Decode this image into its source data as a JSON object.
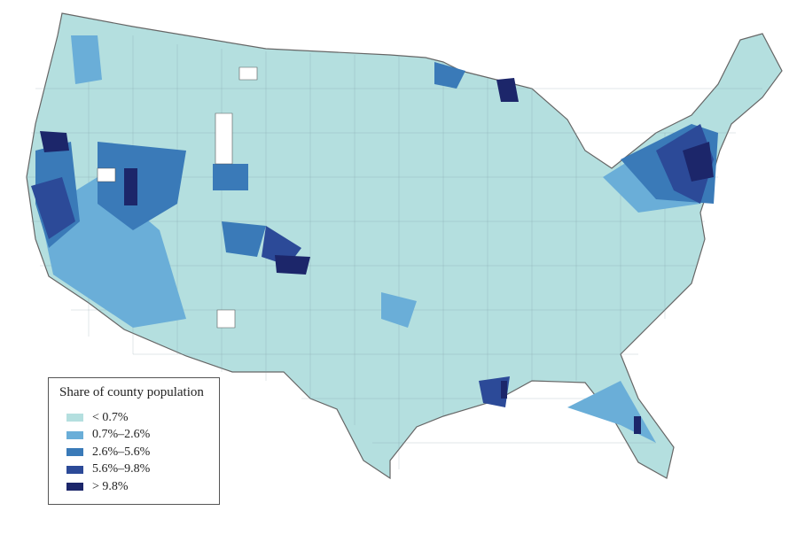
{
  "legend": {
    "title": "Share of county population",
    "items": [
      {
        "label": "< 0.7%",
        "color": "#b4dfdf"
      },
      {
        "label": "0.7%–2.6%",
        "color": "#6aaed8"
      },
      {
        "label": "2.6%–5.6%",
        "color": "#3a7ab8"
      },
      {
        "label": "5.6%–9.8%",
        "color": "#2c4a98"
      },
      {
        "label": "> 9.8%",
        "color": "#1c266a"
      }
    ]
  }
}
